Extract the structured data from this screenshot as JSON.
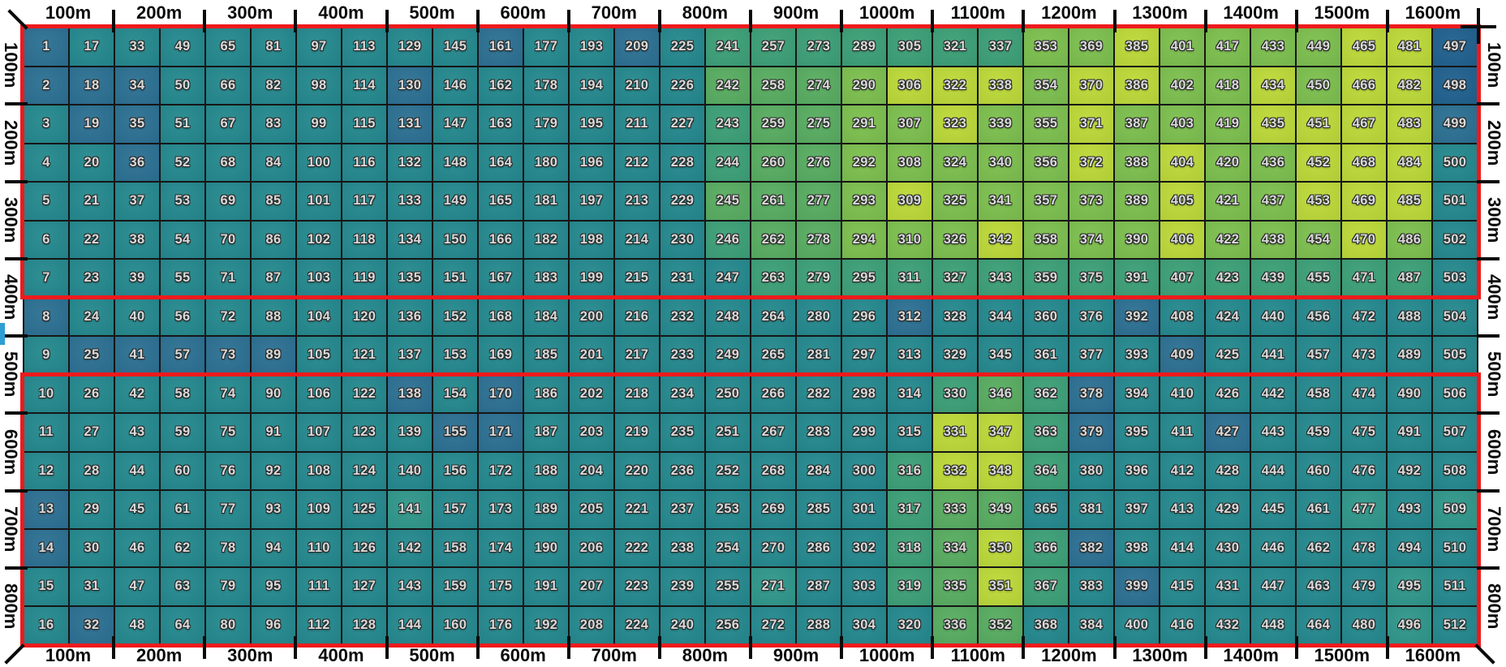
{
  "chart_data": {
    "type": "heatmap",
    "title": "",
    "columns": 32,
    "rows_count": 16,
    "cell_numbering": {
      "order": "column-major",
      "start": 1,
      "end": 512
    },
    "axes": {
      "top_labels": [
        "100m",
        "200m",
        "300m",
        "400m",
        "500m",
        "600m",
        "700m",
        "800m",
        "900m",
        "1000m",
        "1100m",
        "1200m",
        "1300m",
        "1400m",
        "1500m",
        "1600m"
      ],
      "bottom_labels": [
        "100m",
        "200m",
        "300m",
        "400m",
        "500m",
        "600m",
        "700m",
        "800m",
        "900m",
        "1000m",
        "1100m",
        "1200m",
        "1300m",
        "1400m",
        "1500m",
        "1600m"
      ],
      "left_labels": [
        "100m",
        "200m",
        "300m",
        "400m",
        "500m",
        "600m",
        "700m",
        "800m"
      ],
      "right_labels": [
        "100m",
        "200m",
        "300m",
        "400m",
        "500m",
        "600m",
        "700m",
        "800m"
      ],
      "cells_per_label_group": 2,
      "grid_lines": "on"
    },
    "palette": {
      "a": "#24898d",
      "b": "#2c7092",
      "c": "#20618e",
      "d": "#3ca076",
      "e": "#58ad60",
      "f": "#7dc04d",
      "g": "#bdda37",
      "i": "#30988a"
    },
    "palette_meaning": {
      "a": "base teal (low)",
      "b": "dark blue-teal blob (lower)",
      "c": "deep navy (lowest)",
      "d": "teal-green transition",
      "e": "medium green",
      "f": "bright green (high)",
      "g": "yellow-green (highest)",
      "i": "light sea-green speckle"
    },
    "heat_rows": [
      "baaaaaaaaabaabadddddddffgffffggc",
      "bbbaaaaabaaaaaaeeefgggfggffgfggc",
      "abbaaaaabaaaaaadeeffgffgfffggggb",
      "aabaaaaaaaaaaaadeefffffgfgffggga",
      "aaaaaaaaaaaaaaaeeefgfffffgffggga",
      "aaaaaaaaaaaaaaadeefffgfffgfffgfa",
      "aaaaaaaaaaaaaaaaddddddddddddddda",
      "baaaaaaaaaaaaaaaaaabaaaabaaaaaaa",
      "abbbbbaaaaaaaaaaaaaaaaaaabaaaaaa",
      "aaaaaaaababaaaaaaaaadedbaaaaaaaa",
      "aaaaaaaaabbaaaaaaaaaggdbaabaaaaa",
      "aaaaaaaaaaaaaaaaaaadggdaaaaaaaaa",
      "baaaaaaaiaaaaaaaaaadeeaaaaaaaiai",
      "baaaaaaaaaaaaaaaaaadegdbaaaaaaaa",
      "aaaaaaaaaaaaaaaaiaadegdabaaaaaia",
      "abaaaaaaaaaaaaaaaaaaeeaaaaaaaaia"
    ],
    "red_zones": [
      {
        "row_start": 1,
        "row_end": 7
      },
      {
        "row_start": 10,
        "row_end": 16
      }
    ],
    "colors": {
      "zone_outline": "#ee1a1c",
      "grid_line": "#161616",
      "tick": "#0b0b0b",
      "axis_text": "#0a0a0a",
      "cell_number_fill": "#d9d9d9",
      "cell_number_outline": "#282828",
      "blue_edge_marker": "#2e9ed3",
      "background": "#ffffff"
    }
  }
}
